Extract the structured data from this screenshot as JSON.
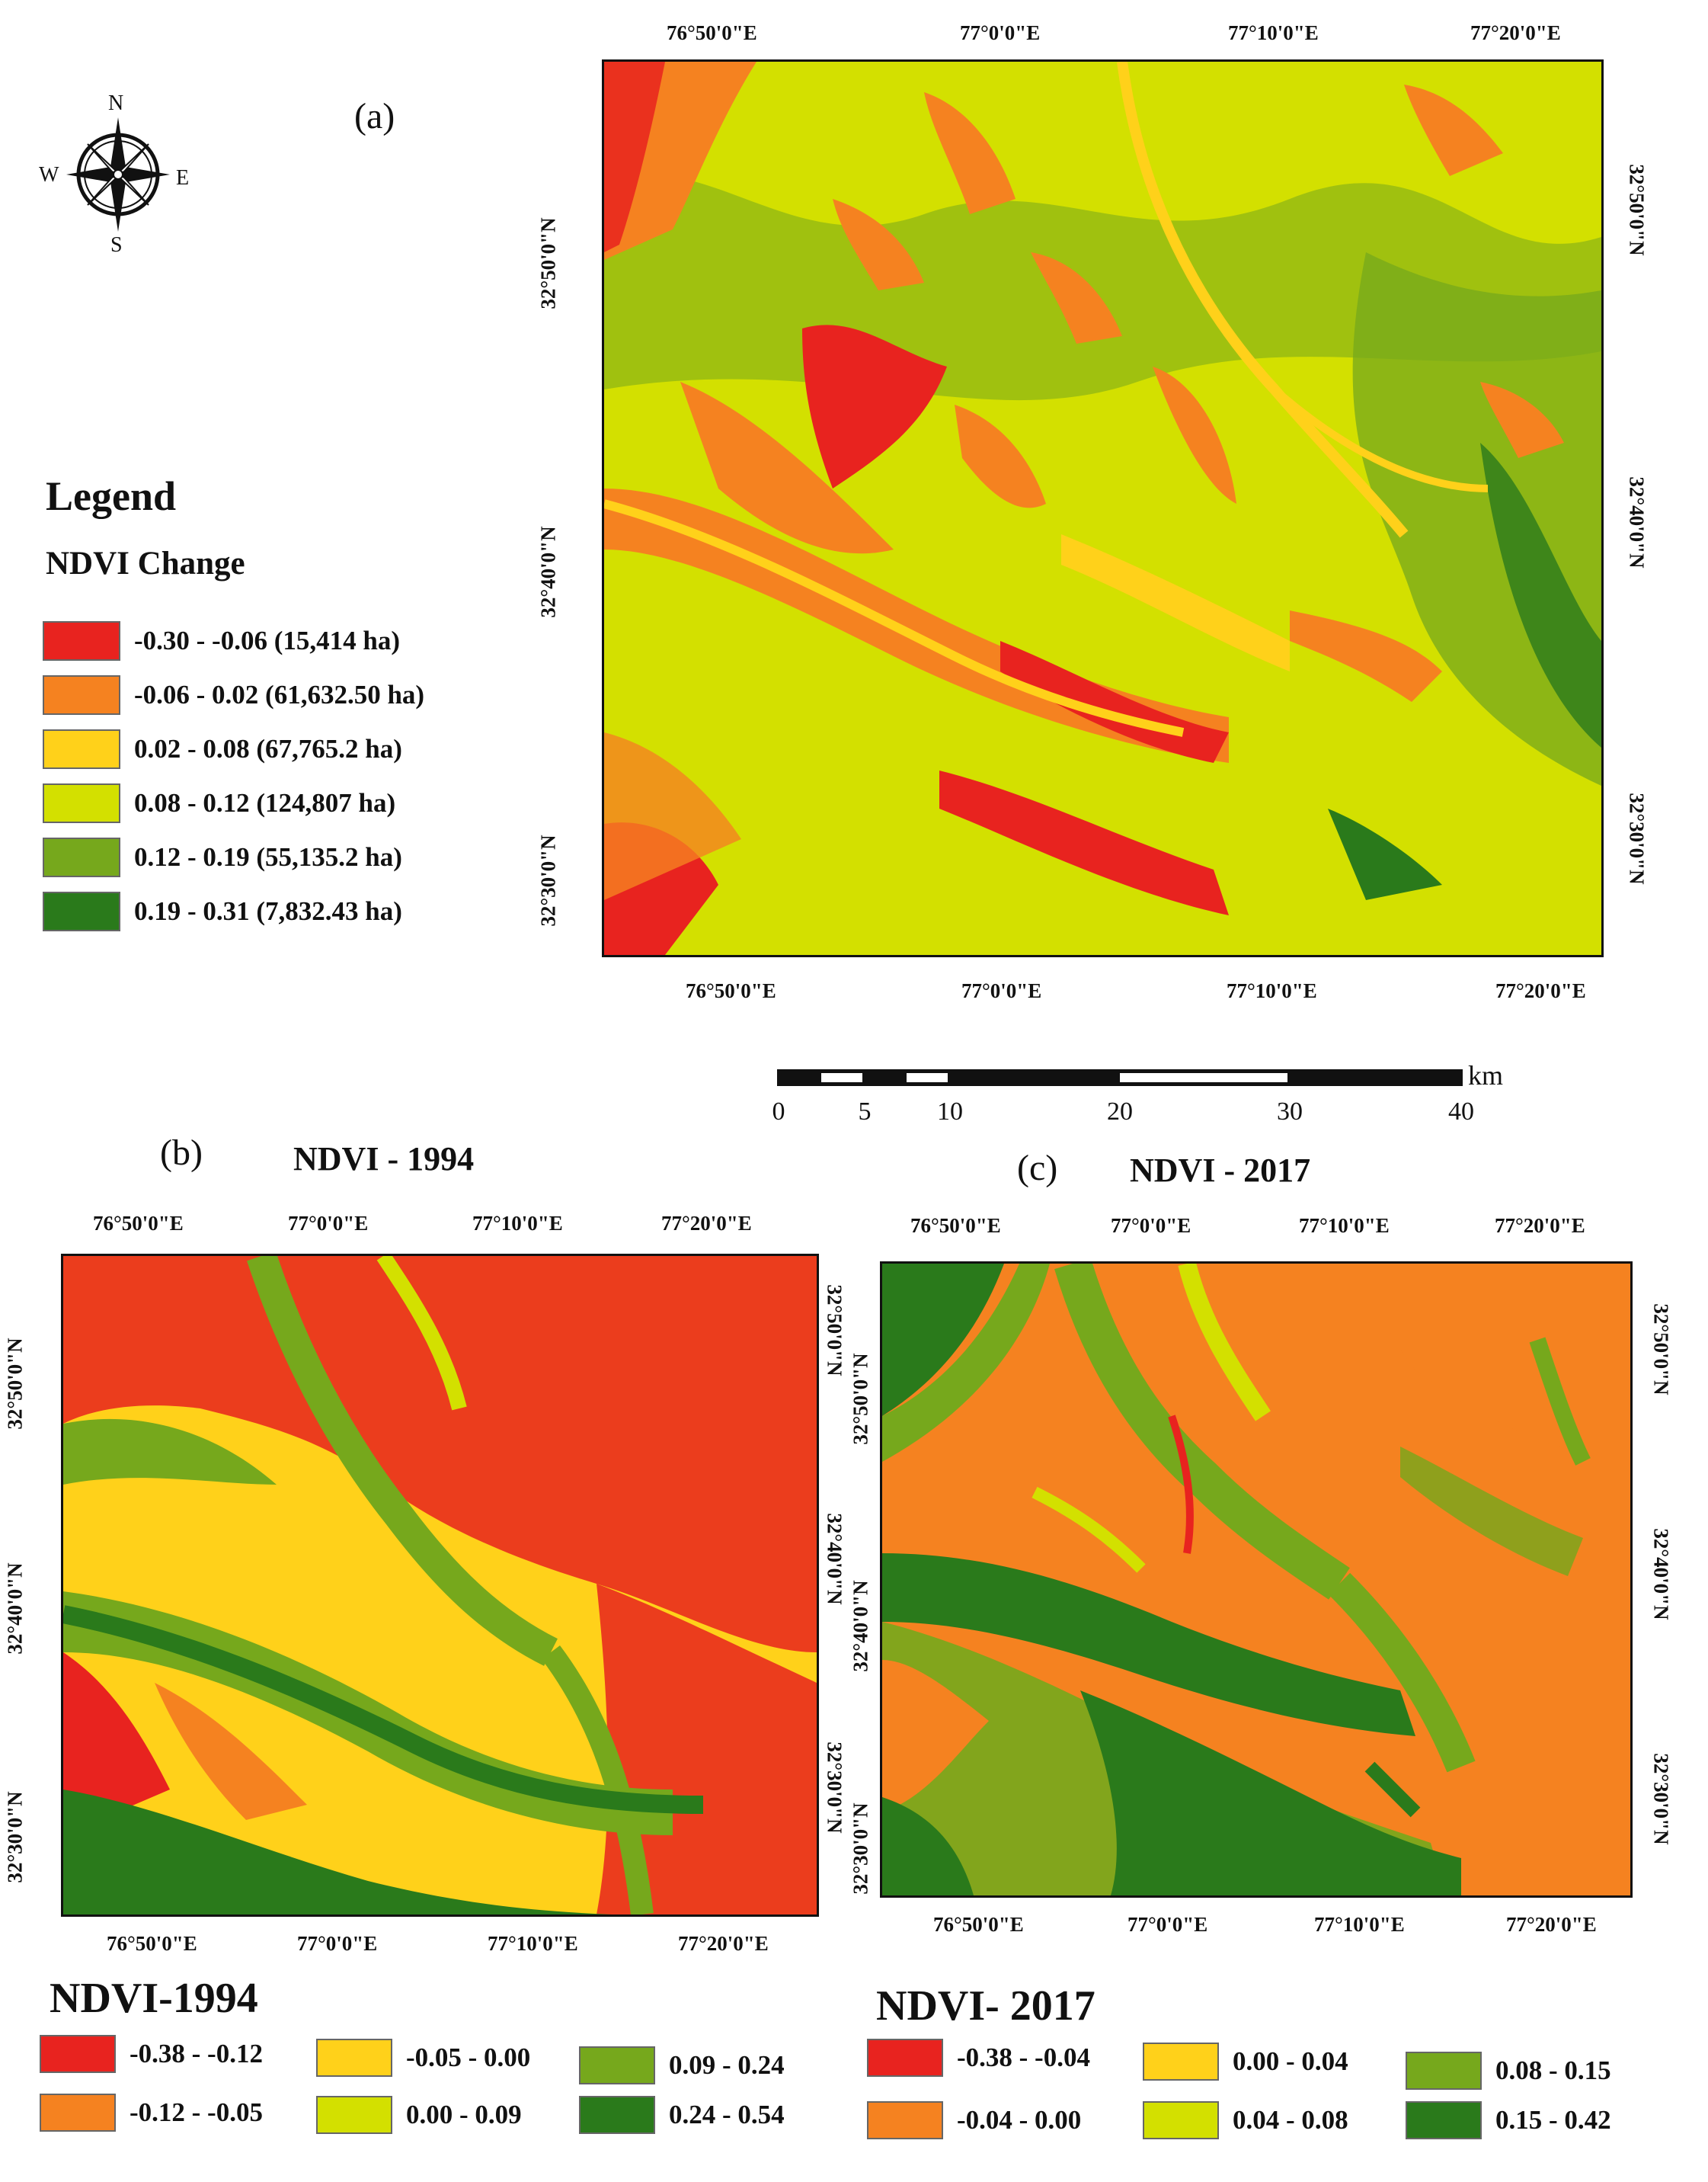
{
  "colors": {
    "red": "#e8231f",
    "orange": "#f58220",
    "yellow": "#ffd11a",
    "light_green": "#d3e000",
    "mid_green": "#76a81c",
    "dark_green": "#2a7a1b"
  },
  "compass": {
    "n": "N",
    "s": "S",
    "e": "E",
    "w": "W",
    "icon": "compass-rose-icon"
  },
  "panel_a": {
    "label": "(a)",
    "top_lon": [
      "76°50'0\"E",
      "77°0'0\"E",
      "77°10'0\"E",
      "77°20'0\"E"
    ],
    "bottom_lon": [
      "76°50'0\"E",
      "77°0'0\"E",
      "77°10'0\"E",
      "77°20'0\"E"
    ],
    "left_lat": [
      "32°50'0\"N",
      "32°40'0\"N",
      "32°30'0\"N"
    ],
    "right_lat": [
      "32°50'0\"N",
      "32°40'0\"N",
      "32°30'0\"N"
    ]
  },
  "legend_a": {
    "heading": "Legend",
    "subheading": "NDVI Change",
    "items": [
      {
        "label": "-0.30 - -0.06 (15,414 ha)",
        "color": "#e8231f"
      },
      {
        "label": "-0.06 - 0.02 (61,632.50 ha)",
        "color": "#f58220"
      },
      {
        "label": "0.02 - 0.08 (67,765.2 ha)",
        "color": "#ffd11a"
      },
      {
        "label": "0.08 - 0.12 (124,807 ha)",
        "color": "#d3e000"
      },
      {
        "label": "0.12 - 0.19 (55,135.2 ha)",
        "color": "#76a81c"
      },
      {
        "label": "0.19 - 0.31 (7,832.43 ha)",
        "color": "#2a7a1b"
      }
    ]
  },
  "scalebar": {
    "unit": "km",
    "ticks": [
      "0",
      "5",
      "10",
      "20",
      "30",
      "40"
    ]
  },
  "panel_b": {
    "label": "(b)",
    "title": "NDVI - 1994",
    "top_lon": [
      "76°50'0\"E",
      "77°0'0\"E",
      "77°10'0\"E",
      "77°20'0\"E"
    ],
    "bottom_lon": [
      "76°50'0\"E",
      "77°0'0\"E",
      "77°10'0\"E",
      "77°20'0\"E"
    ],
    "left_lat": [
      "32°50'0\"N",
      "32°40'0\"N",
      "32°30'0\"N"
    ],
    "right_lat": [
      "32°50'0\"N",
      "32°40'0\"N",
      "32°30'0\"N"
    ]
  },
  "panel_c": {
    "label": "(c)",
    "title": "NDVI - 2017",
    "top_lon": [
      "76°50'0\"E",
      "77°0'0\"E",
      "77°10'0\"E",
      "77°20'0\"E"
    ],
    "bottom_lon": [
      "76°50'0\"E",
      "77°0'0\"E",
      "77°10'0\"E",
      "77°20'0\"E"
    ],
    "left_lat": [
      "32°50'0\"N",
      "32°40'0\"N",
      "32°30'0\"N"
    ],
    "right_lat": [
      "32°50'0\"N",
      "32°40'0\"N",
      "32°30'0\"N"
    ]
  },
  "legend_b": {
    "title": "NDVI-1994",
    "items": [
      {
        "label": "-0.38 - -0.12",
        "color": "#e8231f"
      },
      {
        "label": "-0.12 - -0.05",
        "color": "#f58220"
      },
      {
        "label": "-0.05 - 0.00",
        "color": "#ffd11a"
      },
      {
        "label": "0.00 - 0.09",
        "color": "#d3e000"
      },
      {
        "label": "0.09 - 0.24",
        "color": "#76a81c"
      },
      {
        "label": "0.24 - 0.54",
        "color": "#2a7a1b"
      }
    ]
  },
  "legend_c": {
    "title": "NDVI- 2017",
    "items": [
      {
        "label": "-0.38 - -0.04",
        "color": "#e8231f"
      },
      {
        "label": "-0.04 - 0.00",
        "color": "#f58220"
      },
      {
        "label": "0.00 - 0.04",
        "color": "#ffd11a"
      },
      {
        "label": "0.04 - 0.08",
        "color": "#d3e000"
      },
      {
        "label": "0.08 - 0.15",
        "color": "#76a81c"
      },
      {
        "label": "0.15 - 0.42",
        "color": "#2a7a1b"
      }
    ]
  }
}
